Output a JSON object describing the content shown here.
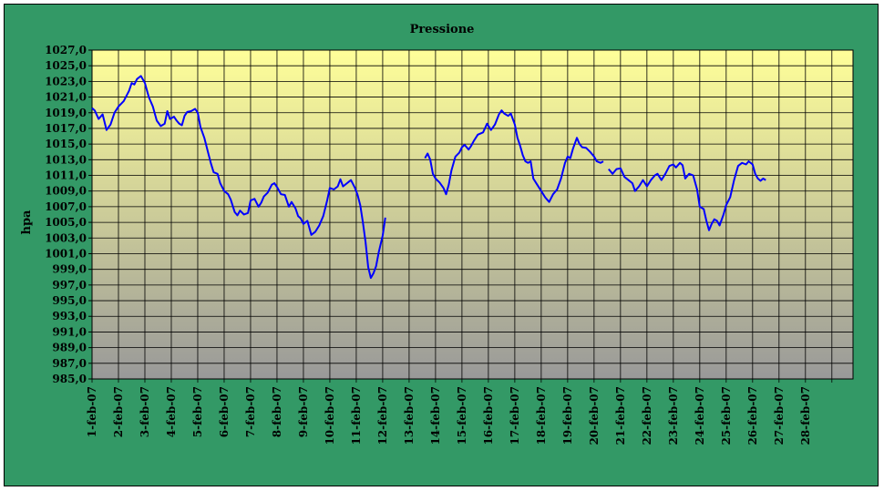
{
  "chart_data": {
    "type": "line",
    "title": "Pressione",
    "xlabel": "",
    "ylabel": "hpa",
    "ylim": [
      985,
      1027
    ],
    "y_ticks": [
      "985,0",
      "987,0",
      "989,0",
      "991,0",
      "993,0",
      "995,0",
      "997,0",
      "999,0",
      "1001,0",
      "1003,0",
      "1005,0",
      "1007,0",
      "1009,0",
      "1011,0",
      "1013,0",
      "1015,0",
      "1017,0",
      "1019,0",
      "1021,0",
      "1023,0",
      "1025,0",
      "1027,0"
    ],
    "categories": [
      "1-feb-07",
      "2-feb-07",
      "3-feb-07",
      "4-feb-07",
      "5-feb-07",
      "6-feb-07",
      "7-feb-07",
      "8-feb-07",
      "9-feb-07",
      "10-feb-07",
      "11-feb-07",
      "12-feb-07",
      "13-feb-07",
      "14-feb-07",
      "15-feb-07",
      "16-feb-07",
      "17-feb-07",
      "18-feb-07",
      "19-feb-07",
      "20-feb-07",
      "21-feb-07",
      "22-feb-07",
      "23-feb-07",
      "24-feb-07",
      "25-feb-07",
      "26-feb-07",
      "27-feb-07",
      "28-feb-07"
    ],
    "grid": true,
    "colors": {
      "line": "#0000ff",
      "background": "#339966",
      "plot_top": "#ffff99",
      "plot_bottom": "#999999",
      "grid": "#000000"
    },
    "series": [
      {
        "name": "",
        "segments": [
          [
            [
              1.0,
              1019.6
            ],
            [
              1.1,
              1019.3
            ],
            [
              1.25,
              1018.2
            ],
            [
              1.4,
              1018.8
            ],
            [
              1.55,
              1016.8
            ],
            [
              1.7,
              1017.5
            ],
            [
              1.85,
              1019.0
            ],
            [
              2.0,
              1019.8
            ],
            [
              2.2,
              1020.5
            ],
            [
              2.4,
              1021.8
            ],
            [
              2.5,
              1022.8
            ],
            [
              2.6,
              1022.6
            ],
            [
              2.7,
              1023.3
            ],
            [
              2.85,
              1023.7
            ],
            [
              3.0,
              1022.8
            ],
            [
              3.15,
              1021.0
            ],
            [
              3.3,
              1019.8
            ],
            [
              3.45,
              1018.0
            ],
            [
              3.6,
              1017.3
            ],
            [
              3.75,
              1017.6
            ],
            [
              3.85,
              1019.2
            ],
            [
              3.95,
              1018.2
            ],
            [
              4.1,
              1018.5
            ],
            [
              4.2,
              1018.0
            ],
            [
              4.3,
              1017.6
            ],
            [
              4.4,
              1017.4
            ],
            [
              4.5,
              1018.6
            ],
            [
              4.6,
              1019.1
            ],
            [
              4.75,
              1019.2
            ],
            [
              4.9,
              1019.5
            ],
            [
              5.0,
              1019.0
            ],
            [
              5.1,
              1017.2
            ],
            [
              5.25,
              1015.8
            ],
            [
              5.4,
              1013.8
            ],
            [
              5.5,
              1012.5
            ],
            [
              5.6,
              1011.4
            ],
            [
              5.75,
              1011.2
            ],
            [
              5.85,
              1010.0
            ],
            [
              6.0,
              1009.0
            ],
            [
              6.15,
              1008.6
            ],
            [
              6.25,
              1007.9
            ],
            [
              6.4,
              1006.3
            ],
            [
              6.5,
              1005.9
            ],
            [
              6.6,
              1006.5
            ],
            [
              6.75,
              1006.0
            ],
            [
              6.9,
              1006.2
            ],
            [
              7.0,
              1007.8
            ],
            [
              7.15,
              1008.0
            ],
            [
              7.3,
              1007.0
            ],
            [
              7.4,
              1007.5
            ],
            [
              7.5,
              1008.3
            ],
            [
              7.65,
              1008.8
            ],
            [
              7.8,
              1009.8
            ],
            [
              7.9,
              1010.0
            ],
            [
              8.0,
              1009.5
            ],
            [
              8.15,
              1008.6
            ],
            [
              8.3,
              1008.5
            ],
            [
              8.45,
              1007.0
            ],
            [
              8.55,
              1007.6
            ],
            [
              8.7,
              1006.8
            ],
            [
              8.8,
              1005.8
            ],
            [
              8.9,
              1005.5
            ],
            [
              9.0,
              1004.8
            ],
            [
              9.15,
              1005.2
            ],
            [
              9.3,
              1003.4
            ],
            [
              9.45,
              1003.8
            ],
            [
              9.6,
              1004.6
            ],
            [
              9.75,
              1005.8
            ],
            [
              9.9,
              1007.8
            ],
            [
              10.0,
              1009.4
            ],
            [
              10.15,
              1009.2
            ],
            [
              10.3,
              1009.6
            ],
            [
              10.4,
              1010.5
            ],
            [
              10.5,
              1009.6
            ],
            [
              10.65,
              1010.0
            ],
            [
              10.8,
              1010.4
            ],
            [
              10.95,
              1009.4
            ],
            [
              11.05,
              1008.5
            ],
            [
              11.15,
              1007.2
            ],
            [
              11.25,
              1005.0
            ],
            [
              11.35,
              1002.5
            ],
            [
              11.45,
              999.3
            ],
            [
              11.55,
              997.9
            ],
            [
              11.65,
              998.5
            ],
            [
              11.75,
              999.4
            ],
            [
              11.85,
              1001.2
            ],
            [
              12.0,
              1003.3
            ],
            [
              12.1,
              1005.6
            ]
          ],
          [
            [
              13.6,
              1013.2
            ],
            [
              13.7,
              1013.8
            ],
            [
              13.8,
              1013.0
            ],
            [
              13.9,
              1011.2
            ],
            [
              14.0,
              1010.6
            ],
            [
              14.15,
              1010.1
            ],
            [
              14.3,
              1009.4
            ],
            [
              14.4,
              1008.6
            ],
            [
              14.5,
              1009.8
            ],
            [
              14.6,
              1011.6
            ],
            [
              14.75,
              1013.4
            ],
            [
              14.9,
              1013.9
            ],
            [
              15.0,
              1014.6
            ],
            [
              15.1,
              1014.9
            ],
            [
              15.25,
              1014.3
            ],
            [
              15.35,
              1014.8
            ],
            [
              15.45,
              1015.4
            ],
            [
              15.6,
              1016.2
            ],
            [
              15.8,
              1016.5
            ],
            [
              15.95,
              1017.6
            ],
            [
              16.1,
              1016.8
            ],
            [
              16.25,
              1017.5
            ],
            [
              16.4,
              1018.8
            ],
            [
              16.5,
              1019.3
            ],
            [
              16.6,
              1018.9
            ],
            [
              16.75,
              1018.6
            ],
            [
              16.85,
              1018.9
            ],
            [
              17.0,
              1017.5
            ],
            [
              17.1,
              1015.8
            ],
            [
              17.2,
              1014.8
            ],
            [
              17.3,
              1013.6
            ],
            [
              17.4,
              1012.8
            ],
            [
              17.5,
              1012.6
            ],
            [
              17.6,
              1012.8
            ],
            [
              17.7,
              1010.6
            ],
            [
              17.85,
              1009.8
            ],
            [
              18.0,
              1009.0
            ],
            [
              18.15,
              1008.2
            ],
            [
              18.3,
              1007.6
            ],
            [
              18.45,
              1008.6
            ],
            [
              18.6,
              1009.2
            ],
            [
              18.75,
              1010.6
            ],
            [
              18.9,
              1012.6
            ],
            [
              19.0,
              1013.4
            ],
            [
              19.1,
              1013.2
            ],
            [
              19.2,
              1014.4
            ],
            [
              19.35,
              1015.8
            ],
            [
              19.45,
              1015.0
            ],
            [
              19.55,
              1014.6
            ],
            [
              19.7,
              1014.5
            ],
            [
              19.85,
              1014.0
            ],
            [
              20.0,
              1013.4
            ],
            [
              20.1,
              1012.8
            ],
            [
              20.25,
              1012.6
            ],
            [
              20.35,
              1012.8
            ]
          ],
          [
            [
              20.55,
              1011.8
            ],
            [
              20.7,
              1011.2
            ],
            [
              20.85,
              1011.8
            ],
            [
              21.0,
              1011.9
            ],
            [
              21.15,
              1010.8
            ],
            [
              21.3,
              1010.4
            ],
            [
              21.45,
              1010.0
            ],
            [
              21.55,
              1009.0
            ],
            [
              21.7,
              1009.6
            ],
            [
              21.85,
              1010.4
            ],
            [
              22.0,
              1009.6
            ],
            [
              22.15,
              1010.4
            ],
            [
              22.3,
              1011.0
            ],
            [
              22.4,
              1011.2
            ],
            [
              22.55,
              1010.4
            ],
            [
              22.7,
              1011.2
            ],
            [
              22.85,
              1012.2
            ],
            [
              23.0,
              1012.4
            ],
            [
              23.1,
              1012.0
            ],
            [
              23.25,
              1012.6
            ],
            [
              23.35,
              1012.3
            ],
            [
              23.45,
              1010.6
            ],
            [
              23.6,
              1011.2
            ],
            [
              23.75,
              1011.0
            ],
            [
              23.9,
              1009.2
            ],
            [
              24.0,
              1007.0
            ],
            [
              24.15,
              1006.7
            ],
            [
              24.25,
              1005.2
            ],
            [
              24.35,
              1004.0
            ],
            [
              24.45,
              1004.8
            ],
            [
              24.55,
              1005.4
            ],
            [
              24.65,
              1005.2
            ],
            [
              24.75,
              1004.6
            ],
            [
              24.9,
              1006.0
            ],
            [
              25.0,
              1007.2
            ],
            [
              25.15,
              1008.2
            ],
            [
              25.3,
              1010.4
            ],
            [
              25.45,
              1012.2
            ],
            [
              25.6,
              1012.6
            ],
            [
              25.75,
              1012.4
            ],
            [
              25.85,
              1012.8
            ],
            [
              26.0,
              1012.4
            ],
            [
              26.1,
              1011.2
            ],
            [
              26.2,
              1010.6
            ],
            [
              26.3,
              1010.3
            ],
            [
              26.4,
              1010.6
            ],
            [
              26.5,
              1010.4
            ]
          ]
        ]
      }
    ]
  }
}
